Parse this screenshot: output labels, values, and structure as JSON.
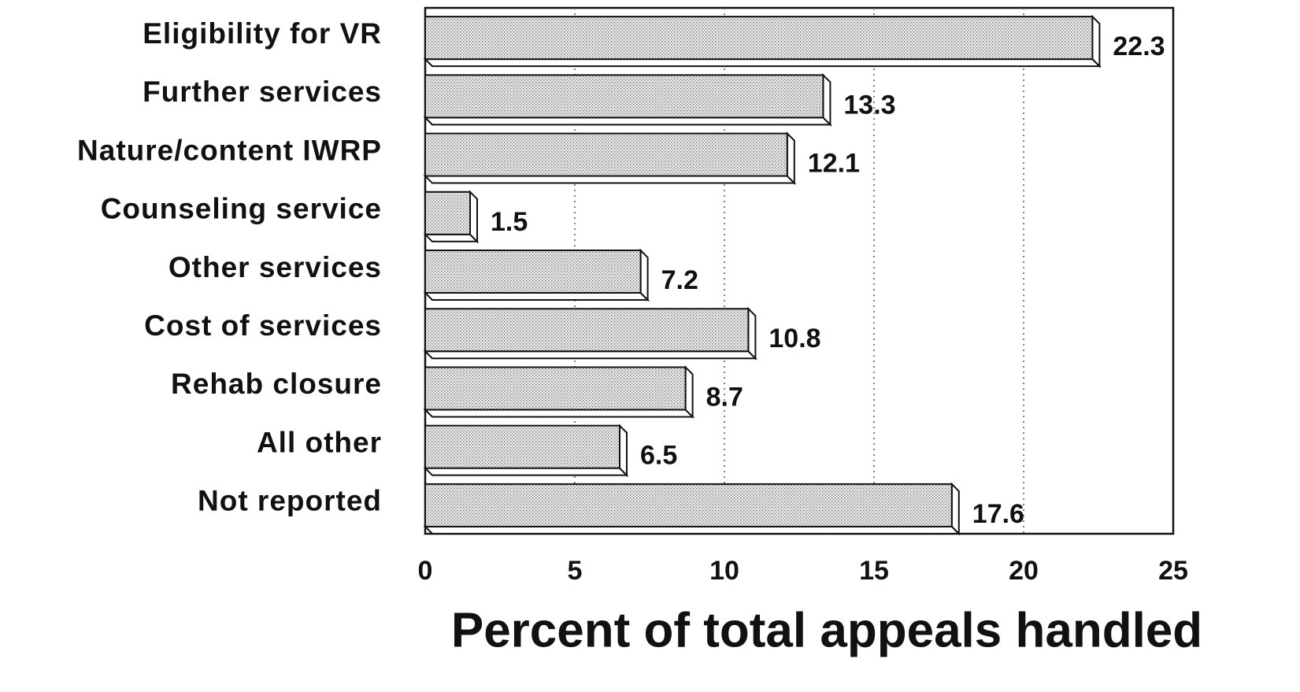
{
  "chart_data": {
    "type": "bar",
    "orientation": "horizontal",
    "categories": [
      "Eligibility for VR",
      "Further services",
      "Nature/content IWRP",
      "Counseling service",
      "Other services",
      "Cost of services",
      "Rehab closure",
      "All other",
      "Not reported"
    ],
    "values": [
      22.3,
      13.3,
      12.1,
      1.5,
      7.2,
      10.8,
      8.7,
      6.5,
      17.6
    ],
    "color": "#d9d9d9",
    "x_label": "Percent of total appeals handled",
    "xlim": [
      0,
      25
    ],
    "xticks": [
      0,
      5,
      10,
      15,
      20,
      25
    ],
    "grid": true
  }
}
